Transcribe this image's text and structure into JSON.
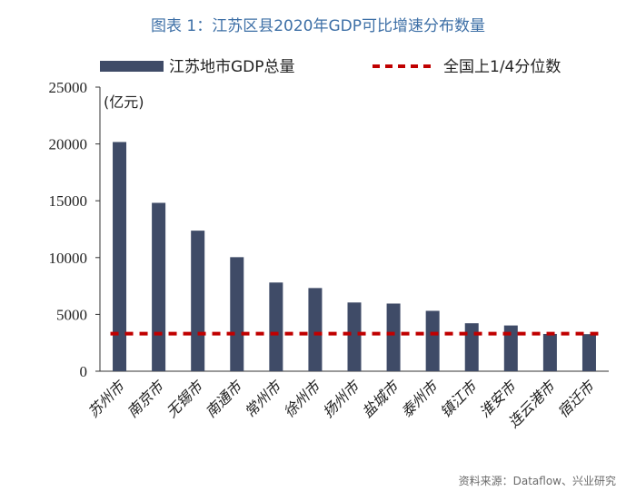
{
  "header": {
    "title": "图表 1：江苏区县2020年GDP可比增速分布数量"
  },
  "footer": {
    "source": "资料来源：Dataflow、兴业研究"
  },
  "chart_data": {
    "type": "bar",
    "title": "图表 1：江苏区县2020年GDP可比增速分布数量",
    "xlabel": "",
    "ylabel": "(亿元)",
    "ylim": [
      0,
      25000
    ],
    "yticks": [
      0,
      5000,
      10000,
      15000,
      20000,
      25000
    ],
    "categories": [
      "苏州市",
      "南京市",
      "无锡市",
      "南通市",
      "常州市",
      "徐州市",
      "扬州市",
      "盐城市",
      "泰州市",
      "镇江市",
      "淮安市",
      "连云港市",
      "宿迁市"
    ],
    "series": [
      {
        "name": "江苏地市GDP总量",
        "values": [
          20170,
          14817,
          12370,
          10036,
          7805,
          7319,
          6048,
          5953,
          5313,
          4220,
          4025,
          3277,
          3262
        ]
      }
    ],
    "reference_line": {
      "name": "全国上1/4分位数",
      "value": 3300
    },
    "legend_position": "top",
    "colors": {
      "bar": "#3f4b67",
      "reference": "#c00000"
    }
  }
}
